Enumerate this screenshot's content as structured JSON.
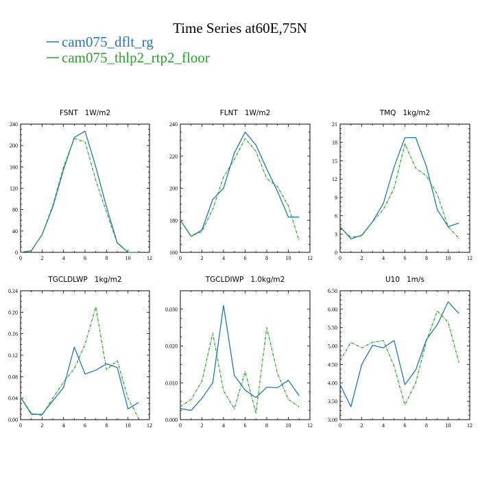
{
  "figure": {
    "title": "Time Series at60E,75N",
    "legend": [
      {
        "label": "cam075_dflt_rg",
        "color": "#1f77b4",
        "dash": "solid"
      },
      {
        "label": "cam075_thlp2_rtp2_floor",
        "color": "#2ca02c",
        "dash": "dashdot"
      }
    ]
  },
  "chart_data": [
    {
      "type": "line",
      "title": "FSNT   1W/m2",
      "x": [
        0,
        1,
        2,
        3,
        4,
        5,
        6,
        7,
        8,
        9,
        10,
        11
      ],
      "xlim": [
        0,
        12
      ],
      "xticks": [
        0,
        2,
        4,
        6,
        8,
        10,
        12
      ],
      "ylim": [
        0,
        240
      ],
      "yticks": [
        0,
        40,
        80,
        120,
        160,
        200,
        240
      ],
      "ytick_labels": [
        "0",
        "40",
        "80",
        "120",
        "160",
        "200",
        "240"
      ],
      "series": [
        {
          "name": "cam075_dflt_rg",
          "values": [
            0,
            3,
            33,
            85,
            155,
            215,
            227,
            160,
            85,
            18,
            0,
            0
          ]
        },
        {
          "name": "cam075_thlp2_rtp2_floor",
          "values": [
            0,
            3,
            33,
            88,
            160,
            213,
            207,
            135,
            75,
            17,
            0,
            0
          ]
        }
      ]
    },
    {
      "type": "line",
      "title": "FLNT   1W/m2",
      "x": [
        0,
        1,
        2,
        3,
        4,
        5,
        6,
        7,
        8,
        9,
        10,
        11
      ],
      "xlim": [
        0,
        12
      ],
      "xticks": [
        0,
        2,
        4,
        6,
        8,
        10,
        12
      ],
      "ylim": [
        160,
        240
      ],
      "yticks": [
        160,
        180,
        200,
        220,
        240
      ],
      "ytick_labels": [
        "160",
        "180",
        "200",
        "220",
        "240"
      ],
      "series": [
        {
          "name": "cam075_dflt_rg",
          "values": [
            180,
            170,
            174,
            193,
            200,
            222,
            235,
            227,
            212,
            198,
            182,
            182
          ]
        },
        {
          "name": "cam075_thlp2_rtp2_floor",
          "values": [
            180,
            170,
            173,
            187,
            207,
            218,
            231,
            223,
            206,
            201,
            189,
            167
          ]
        }
      ]
    },
    {
      "type": "line",
      "title": "TMQ   1kg/m2",
      "x": [
        0,
        1,
        2,
        3,
        4,
        5,
        6,
        7,
        8,
        9,
        10,
        11
      ],
      "xlim": [
        0,
        12
      ],
      "xticks": [
        0,
        2,
        4,
        6,
        8,
        10,
        12
      ],
      "ylim": [
        0,
        21
      ],
      "yticks": [
        0,
        3,
        6,
        9,
        12,
        15,
        18,
        21
      ],
      "ytick_labels": [
        "0",
        "3",
        "6",
        "9",
        "12",
        "15",
        "18",
        "21"
      ],
      "series": [
        {
          "name": "cam075_dflt_rg",
          "values": [
            4.2,
            2.2,
            2.8,
            5.0,
            8.0,
            14.0,
            18.8,
            18.8,
            14.0,
            7.0,
            4.2,
            4.8
          ]
        },
        {
          "name": "cam075_thlp2_rtp2_floor",
          "values": [
            4.0,
            2.5,
            2.7,
            5.0,
            7.0,
            10.5,
            17.8,
            13.8,
            12.5,
            9.5,
            4.2,
            2.3
          ]
        }
      ]
    },
    {
      "type": "line",
      "title": "TGCLDLWP   1kg/m2",
      "x": [
        0,
        1,
        2,
        3,
        4,
        5,
        6,
        7,
        8,
        9,
        10,
        11
      ],
      "xlim": [
        0,
        12
      ],
      "xticks": [
        0,
        2,
        4,
        6,
        8,
        10,
        12
      ],
      "ylim": [
        0,
        0.24
      ],
      "yticks": [
        0,
        0.04,
        0.08,
        0.12,
        0.16,
        0.2,
        0.24
      ],
      "ytick_labels": [
        "0.00",
        "0.04",
        "0.08",
        "0.12",
        "0.16",
        "0.20",
        "0.24"
      ],
      "series": [
        {
          "name": "cam075_dflt_rg",
          "values": [
            0.042,
            0.01,
            0.01,
            0.035,
            0.06,
            0.135,
            0.085,
            0.092,
            0.104,
            0.097,
            0.02,
            0.032
          ]
        },
        {
          "name": "cam075_thlp2_rtp2_floor",
          "values": [
            0.042,
            0.012,
            0.008,
            0.04,
            0.07,
            0.095,
            0.14,
            0.21,
            0.093,
            0.11,
            0.04,
            0.002
          ]
        }
      ]
    },
    {
      "type": "line",
      "title": "TGCLDIWP   1.0kg/m2",
      "x": [
        0,
        1,
        2,
        3,
        4,
        5,
        6,
        7,
        8,
        9,
        10,
        11
      ],
      "xlim": [
        0,
        12
      ],
      "xticks": [
        0,
        2,
        4,
        6,
        8,
        10,
        12
      ],
      "ylim": [
        0,
        0.035
      ],
      "yticks": [
        0,
        0.01,
        0.02,
        0.03
      ],
      "ytick_labels": [
        "0.000",
        "0.010",
        "0.020",
        "0.030"
      ],
      "series": [
        {
          "name": "cam075_dflt_rg",
          "values": [
            0.003,
            0.0025,
            0.0058,
            0.01,
            0.031,
            0.012,
            0.008,
            0.006,
            0.0088,
            0.0087,
            0.0107,
            0.0065
          ]
        },
        {
          "name": "cam075_thlp2_rtp2_floor",
          "values": [
            0.0035,
            0.0055,
            0.0105,
            0.0235,
            0.0078,
            0.003,
            0.013,
            0.0018,
            0.025,
            0.0125,
            0.0055,
            0.0035
          ]
        }
      ]
    },
    {
      "type": "line",
      "title": "U10   1m/s",
      "x": [
        0,
        1,
        2,
        3,
        4,
        5,
        6,
        7,
        8,
        9,
        10,
        11
      ],
      "xlim": [
        0,
        12
      ],
      "xticks": [
        0,
        2,
        4,
        6,
        8,
        10,
        12
      ],
      "ylim": [
        3.0,
        6.5
      ],
      "yticks": [
        3.0,
        3.5,
        4.0,
        4.5,
        5.0,
        5.5,
        6.0,
        6.5
      ],
      "ytick_labels": [
        "3.00",
        "3.50",
        "4.00",
        "4.50",
        "5.00",
        "5.50",
        "6.00",
        "6.50"
      ],
      "series": [
        {
          "name": "cam075_dflt_rg",
          "values": [
            3.95,
            3.35,
            4.5,
            5.02,
            4.95,
            5.15,
            3.95,
            4.35,
            5.18,
            5.58,
            6.2,
            5.88
          ]
        },
        {
          "name": "cam075_thlp2_rtp2_floor",
          "values": [
            4.6,
            5.1,
            4.95,
            5.1,
            5.15,
            4.45,
            3.4,
            4.0,
            5.15,
            5.95,
            5.65,
            4.55
          ]
        }
      ]
    }
  ]
}
